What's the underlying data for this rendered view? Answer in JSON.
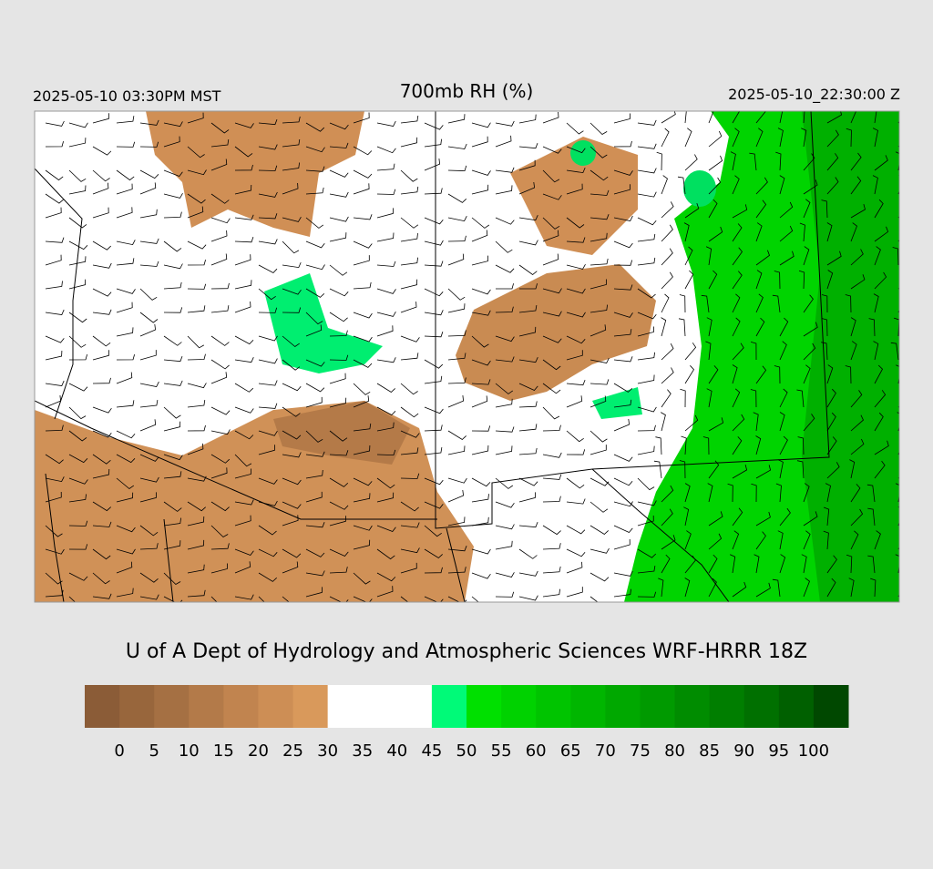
{
  "header": {
    "left": "2025-05-10 03:30PM MST",
    "title": "700mb RH (%)",
    "right": "2025-05-10_22:30:00 Z"
  },
  "footer": "U of A Dept of Hydrology and Atmospheric Sciences WRF-HRRR 18Z",
  "colorbar": {
    "colors": [
      "#8b5c37",
      "#98663c",
      "#a57043",
      "#b37a49",
      "#c1844f",
      "#cd8e55",
      "#d9995b",
      "#ffffff",
      "#ffffff",
      "#ffffff",
      "#00fa78",
      "#00e000",
      "#00d200",
      "#00c400",
      "#00b600",
      "#00a800",
      "#009a00",
      "#008c00",
      "#007e00",
      "#007000",
      "#006000",
      "#004800"
    ],
    "ticks": [
      0,
      5,
      10,
      15,
      20,
      25,
      30,
      35,
      40,
      45,
      50,
      55,
      60,
      65,
      70,
      75,
      80,
      85,
      90,
      95,
      100
    ]
  }
}
